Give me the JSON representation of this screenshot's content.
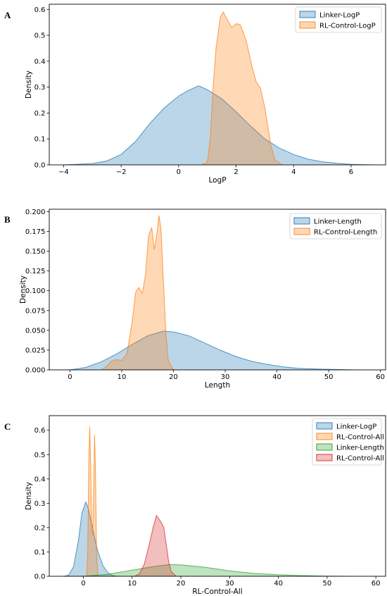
{
  "chart_data": [
    {
      "type": "area",
      "panel_label": "A",
      "xlabel": "LogP",
      "ylabel": "Density",
      "xlim": [
        -4.5,
        7.2
      ],
      "ylim": [
        0,
        0.62
      ],
      "xticks": [
        -4,
        -2,
        0,
        2,
        4,
        6
      ],
      "xtick_labels": [
        "−4",
        "−2",
        "0",
        "2",
        "4",
        "6"
      ],
      "yticks": [
        0.0,
        0.1,
        0.2,
        0.3,
        0.4,
        0.5,
        0.6
      ],
      "ytick_labels": [
        "0.0",
        "0.1",
        "0.2",
        "0.3",
        "0.4",
        "0.5",
        "0.6"
      ],
      "legend_position": "top-right",
      "series": [
        {
          "name": "Linker-LogP",
          "color": "#1f77b4",
          "points": [
            [
              -4,
              0.0
            ],
            [
              -3,
              0.005
            ],
            [
              -2.5,
              0.015
            ],
            [
              -2,
              0.04
            ],
            [
              -1.5,
              0.09
            ],
            [
              -1,
              0.16
            ],
            [
              -0.5,
              0.22
            ],
            [
              0,
              0.265
            ],
            [
              0.3,
              0.285
            ],
            [
              0.7,
              0.305
            ],
            [
              1,
              0.29
            ],
            [
              1.5,
              0.255
            ],
            [
              2,
              0.205
            ],
            [
              2.5,
              0.15
            ],
            [
              3,
              0.1
            ],
            [
              3.5,
              0.065
            ],
            [
              4,
              0.04
            ],
            [
              4.5,
              0.022
            ],
            [
              5,
              0.012
            ],
            [
              5.5,
              0.006
            ],
            [
              6,
              0.002
            ],
            [
              6.8,
              0.0
            ]
          ]
        },
        {
          "name": "RL-Control-LogP",
          "color": "#ff7f0e",
          "points": [
            [
              0.8,
              0.0
            ],
            [
              1.0,
              0.01
            ],
            [
              1.1,
              0.1
            ],
            [
              1.2,
              0.3
            ],
            [
              1.3,
              0.45
            ],
            [
              1.45,
              0.57
            ],
            [
              1.55,
              0.59
            ],
            [
              1.7,
              0.56
            ],
            [
              1.85,
              0.53
            ],
            [
              2.0,
              0.545
            ],
            [
              2.15,
              0.54
            ],
            [
              2.35,
              0.48
            ],
            [
              2.55,
              0.38
            ],
            [
              2.7,
              0.32
            ],
            [
              2.85,
              0.295
            ],
            [
              3.0,
              0.22
            ],
            [
              3.2,
              0.08
            ],
            [
              3.35,
              0.02
            ],
            [
              3.6,
              0.0
            ]
          ]
        }
      ]
    },
    {
      "type": "area",
      "panel_label": "B",
      "xlabel": "Length",
      "ylabel": "Density",
      "xlim": [
        -4,
        61
      ],
      "ylim": [
        0,
        0.203
      ],
      "xticks": [
        0,
        10,
        20,
        30,
        40,
        50,
        60
      ],
      "xtick_labels": [
        "0",
        "10",
        "20",
        "30",
        "40",
        "50",
        "60"
      ],
      "yticks": [
        0.0,
        0.025,
        0.05,
        0.075,
        0.1,
        0.125,
        0.15,
        0.175,
        0.2
      ],
      "ytick_labels": [
        "0.000",
        "0.025",
        "0.050",
        "0.075",
        "0.100",
        "0.125",
        "0.150",
        "0.175",
        "0.200"
      ],
      "legend_position": "top-right",
      "series": [
        {
          "name": "Linker-Length",
          "color": "#1f77b4",
          "points": [
            [
              -4,
              0.0
            ],
            [
              0,
              0.0
            ],
            [
              3,
              0.003
            ],
            [
              6,
              0.01
            ],
            [
              9,
              0.02
            ],
            [
              12,
              0.032
            ],
            [
              15,
              0.043
            ],
            [
              18,
              0.049
            ],
            [
              20,
              0.048
            ],
            [
              23,
              0.043
            ],
            [
              26,
              0.034
            ],
            [
              29,
              0.025
            ],
            [
              32,
              0.017
            ],
            [
              35,
              0.011
            ],
            [
              38,
              0.007
            ],
            [
              41,
              0.004
            ],
            [
              44,
              0.002
            ],
            [
              48,
              0.001
            ],
            [
              55,
              0.0
            ]
          ]
        },
        {
          "name": "RL-Control-Length",
          "color": "#ff7f0e",
          "points": [
            [
              6,
              0.0
            ],
            [
              7,
              0.004
            ],
            [
              8,
              0.011
            ],
            [
              9,
              0.013
            ],
            [
              10,
              0.012
            ],
            [
              11,
              0.02
            ],
            [
              12,
              0.06
            ],
            [
              12.7,
              0.098
            ],
            [
              13.3,
              0.104
            ],
            [
              14,
              0.097
            ],
            [
              14.6,
              0.12
            ],
            [
              15.2,
              0.17
            ],
            [
              15.8,
              0.18
            ],
            [
              16.3,
              0.152
            ],
            [
              16.8,
              0.172
            ],
            [
              17.2,
              0.195
            ],
            [
              17.6,
              0.178
            ],
            [
              18,
              0.12
            ],
            [
              18.5,
              0.05
            ],
            [
              19,
              0.012
            ],
            [
              20,
              0.0
            ]
          ]
        }
      ]
    },
    {
      "type": "area",
      "panel_label": "C",
      "xlabel": "RL-Control-All",
      "ylabel": "Density",
      "xlim": [
        -7,
        62
      ],
      "ylim": [
        0,
        0.66
      ],
      "xticks": [
        0,
        10,
        20,
        30,
        40,
        50,
        60
      ],
      "xtick_labels": [
        "0",
        "10",
        "20",
        "30",
        "40",
        "50",
        "60"
      ],
      "yticks": [
        0.0,
        0.1,
        0.2,
        0.3,
        0.4,
        0.5,
        0.6
      ],
      "ytick_labels": [
        "0.0",
        "0.1",
        "0.2",
        "0.3",
        "0.4",
        "0.5",
        "0.6"
      ],
      "legend_position": "top-right",
      "series": [
        {
          "name": "Linker-LogP",
          "color": "#1f77b4",
          "points": [
            [
              -4,
              0.0
            ],
            [
              -3,
              0.005
            ],
            [
              -2,
              0.04
            ],
            [
              -1,
              0.15
            ],
            [
              -0.3,
              0.26
            ],
            [
              0.5,
              0.305
            ],
            [
              1,
              0.28
            ],
            [
              1.5,
              0.235
            ],
            [
              2,
              0.19
            ],
            [
              2.5,
              0.14
            ],
            [
              3,
              0.1
            ],
            [
              4,
              0.045
            ],
            [
              5,
              0.015
            ],
            [
              6,
              0.003
            ],
            [
              7,
              0.0
            ]
          ]
        },
        {
          "name": "RL-Control-All",
          "color": "#ff7f0e",
          "points": [
            [
              0.7,
              0.0
            ],
            [
              0.9,
              0.1
            ],
            [
              1.1,
              0.45
            ],
            [
              1.3,
              0.615
            ],
            [
              1.5,
              0.45
            ],
            [
              1.7,
              0.19
            ],
            [
              1.9,
              0.17
            ],
            [
              2.1,
              0.35
            ],
            [
              2.3,
              0.58
            ],
            [
              2.5,
              0.42
            ],
            [
              2.7,
              0.1
            ],
            [
              3.0,
              0.0
            ]
          ]
        },
        {
          "name": "Linker-Length",
          "color": "#2ca02c",
          "points": [
            [
              -4,
              0.0
            ],
            [
              0,
              0.0
            ],
            [
              5,
              0.008
            ],
            [
              10,
              0.025
            ],
            [
              15,
              0.042
            ],
            [
              18,
              0.048
            ],
            [
              20,
              0.047
            ],
            [
              25,
              0.037
            ],
            [
              30,
              0.022
            ],
            [
              35,
              0.012
            ],
            [
              40,
              0.006
            ],
            [
              45,
              0.003
            ],
            [
              50,
              0.001
            ],
            [
              55,
              0.0
            ]
          ]
        },
        {
          "name": "RL-Control-All",
          "color": "#d62728",
          "points": [
            [
              10.5,
              0.0
            ],
            [
              11.5,
              0.01
            ],
            [
              12.5,
              0.05
            ],
            [
              13.5,
              0.13
            ],
            [
              14.3,
              0.2
            ],
            [
              15,
              0.25
            ],
            [
              15.5,
              0.235
            ],
            [
              16,
              0.22
            ],
            [
              16.5,
              0.2
            ],
            [
              17,
              0.13
            ],
            [
              17.5,
              0.06
            ],
            [
              18,
              0.02
            ],
            [
              19,
              0.0
            ]
          ]
        }
      ]
    }
  ]
}
